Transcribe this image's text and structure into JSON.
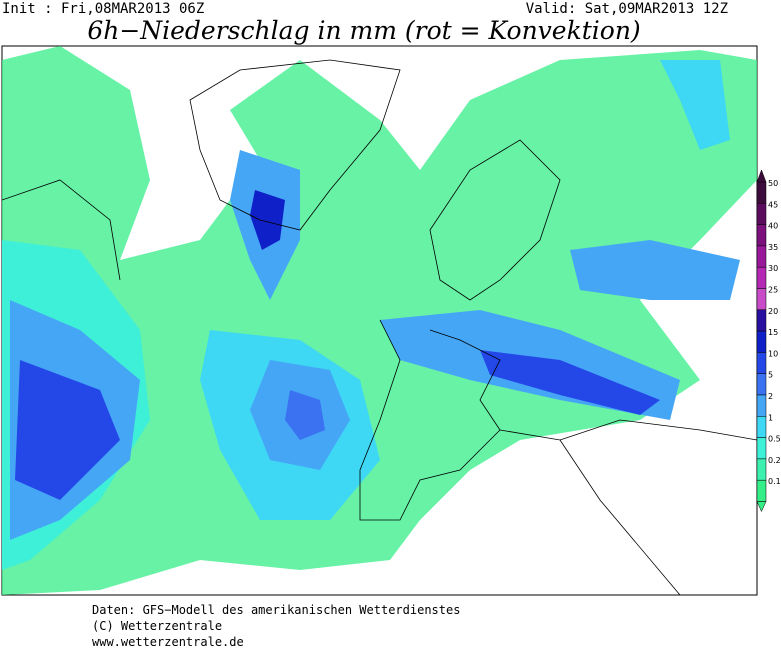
{
  "header": {
    "init": "Init : Fri,08MAR2013 06Z",
    "valid": "Valid: Sat,09MAR2013 12Z",
    "title": "6h−Niederschlag in mm (rot = Konvektion)"
  },
  "legend": {
    "levels": [
      {
        "label": "50",
        "color": "#3c0c3c"
      },
      {
        "label": "45",
        "color": "#5c0c5c"
      },
      {
        "label": "40",
        "color": "#7c107c"
      },
      {
        "label": "35",
        "color": "#9a189a"
      },
      {
        "label": "30",
        "color": "#b428b4"
      },
      {
        "label": "25",
        "color": "#c84cc8"
      },
      {
        "label": "20",
        "color": "#2a10a0"
      },
      {
        "label": "15",
        "color": "#1020c8"
      },
      {
        "label": "10",
        "color": "#2448e8"
      },
      {
        "label": "5",
        "color": "#3a72f2"
      },
      {
        "label": "2",
        "color": "#46a6f6"
      },
      {
        "label": "1",
        "color": "#3ed8f4"
      },
      {
        "label": "0.5",
        "color": "#3ef0d8"
      },
      {
        "label": "0.2",
        "color": "#3cf0b0"
      },
      {
        "label": "0.1",
        "color": "#34ee88"
      }
    ]
  },
  "footer": {
    "lines": [
      "Daten: GFS−Modell des amerikanischen Wetterdienstes",
      "(C) Wetterzentrale",
      "www.wetterzentrale.de"
    ]
  }
}
